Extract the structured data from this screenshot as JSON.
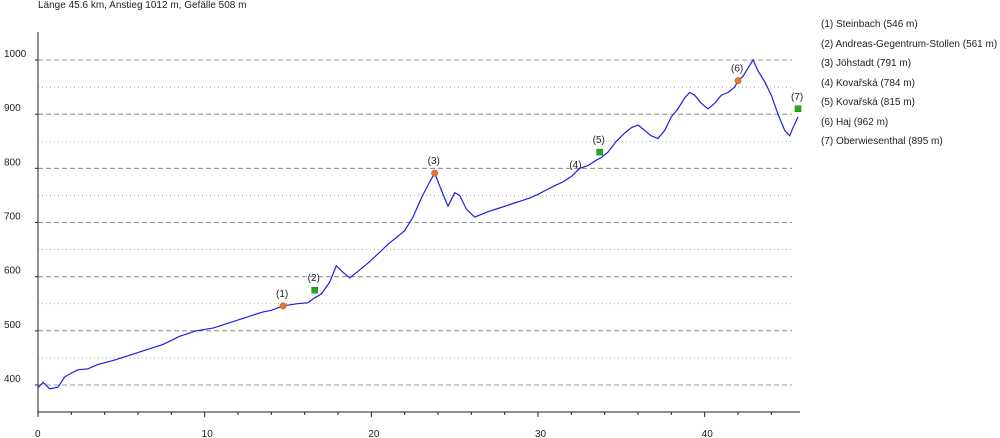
{
  "header": {
    "summary": "Länge 45.6 km, Anstieg 1012 m, Gefälle 508 m"
  },
  "chart_data": {
    "type": "line",
    "title": "Länge 45.6 km, Anstieg 1012 m, Gefälle 508 m",
    "xlabel": "",
    "ylabel": "",
    "xlim": [
      0,
      45.6
    ],
    "ylim": [
      350,
      1050
    ],
    "x_ticks": [
      0,
      10,
      20,
      30,
      40
    ],
    "y_ticks": [
      400,
      500,
      600,
      700,
      800,
      900,
      1000
    ],
    "grid": "horizontal",
    "legend_placement": "right",
    "line_color": "#1f1fe0",
    "series": [
      {
        "x": [
          0,
          0.3,
          0.7,
          1.2,
          1.6,
          2.0,
          2.4,
          3.0,
          3.6,
          4.5,
          5.5,
          6.5,
          7.5,
          8.5,
          9.5,
          10.5,
          11.5,
          12.5,
          13.5,
          14.0,
          14.7,
          15.5,
          16.2,
          16.6,
          17.0,
          17.5,
          17.9,
          18.3,
          18.7,
          19.2,
          19.8,
          20.5,
          21.0,
          21.5,
          22.0,
          22.5,
          23.0,
          23.5,
          23.8,
          24.2,
          24.6,
          25.0,
          25.3,
          25.7,
          26.2,
          26.6,
          27.0,
          27.5,
          28.0,
          28.5,
          29.0,
          29.5,
          30.0,
          30.5,
          31.0,
          31.5,
          32.0,
          32.5,
          33.0,
          33.5,
          33.8,
          34.2,
          34.7,
          35.2,
          35.6,
          36.0,
          36.4,
          36.8,
          37.2,
          37.6,
          38.0,
          38.4,
          38.8,
          39.1,
          39.4,
          39.8,
          40.2,
          40.6,
          41.0,
          41.4,
          41.8,
          42.0,
          42.3,
          42.6,
          42.9,
          43.2,
          43.6,
          44.0,
          44.4,
          44.8,
          45.1,
          45.3,
          45.6
        ],
        "y": [
          395,
          405,
          393,
          396,
          415,
          422,
          428,
          430,
          438,
          445,
          455,
          465,
          475,
          490,
          500,
          505,
          515,
          525,
          535,
          538,
          546,
          550,
          552,
          561,
          568,
          590,
          620,
          608,
          598,
          610,
          625,
          645,
          660,
          672,
          685,
          710,
          745,
          775,
          791,
          760,
          730,
          755,
          750,
          725,
          710,
          715,
          720,
          725,
          730,
          735,
          740,
          745,
          752,
          760,
          768,
          775,
          785,
          800,
          805,
          815,
          820,
          830,
          850,
          865,
          875,
          880,
          870,
          860,
          855,
          870,
          895,
          910,
          930,
          940,
          935,
          920,
          910,
          920,
          935,
          940,
          950,
          962,
          970,
          985,
          1000,
          980,
          960,
          935,
          900,
          870,
          860,
          875,
          895
        ]
      }
    ],
    "waypoints": [
      {
        "id": "(1)",
        "name": "Steinbach",
        "elevation": 546,
        "x": 14.7,
        "marker": "circle",
        "color": "#e8762c"
      },
      {
        "id": "(2)",
        "name": "Andreas-Gegentrum-Stollen",
        "elevation": 561,
        "x": 16.6,
        "marker": "square",
        "color": "#22aa22"
      },
      {
        "id": "(3)",
        "name": "Jöhstadt",
        "elevation": 791,
        "x": 23.8,
        "marker": "circle",
        "color": "#e8762c"
      },
      {
        "id": "(4)",
        "name": "Kovařská",
        "elevation": 784,
        "x": 32.3,
        "marker": "none",
        "color": "#e8762c"
      },
      {
        "id": "(5)",
        "name": "Kovařská",
        "elevation": 815,
        "x": 33.7,
        "marker": "square",
        "color": "#22aa22"
      },
      {
        "id": "(6)",
        "name": "Haj",
        "elevation": 962,
        "x": 42.0,
        "marker": "circle",
        "color": "#e8762c"
      },
      {
        "id": "(7)",
        "name": "Oberwiesenthal",
        "elevation": 895,
        "x": 45.6,
        "marker": "square",
        "color": "#22aa22"
      }
    ],
    "waypoint_y_at_marker": [
      546,
      575,
      791,
      784,
      830,
      962,
      910
    ]
  },
  "legend": {
    "items": [
      "(1) Steinbach (546 m)",
      "(2) Andreas-Gegentrum-Stollen (561 m)",
      "(3) Jöhstadt (791 m)",
      "(4) Kovařská (784 m)",
      "(5) Kovařská (815 m)",
      "(6) Haj (962 m)",
      "(7) Oberwiesenthal (895 m)"
    ]
  }
}
